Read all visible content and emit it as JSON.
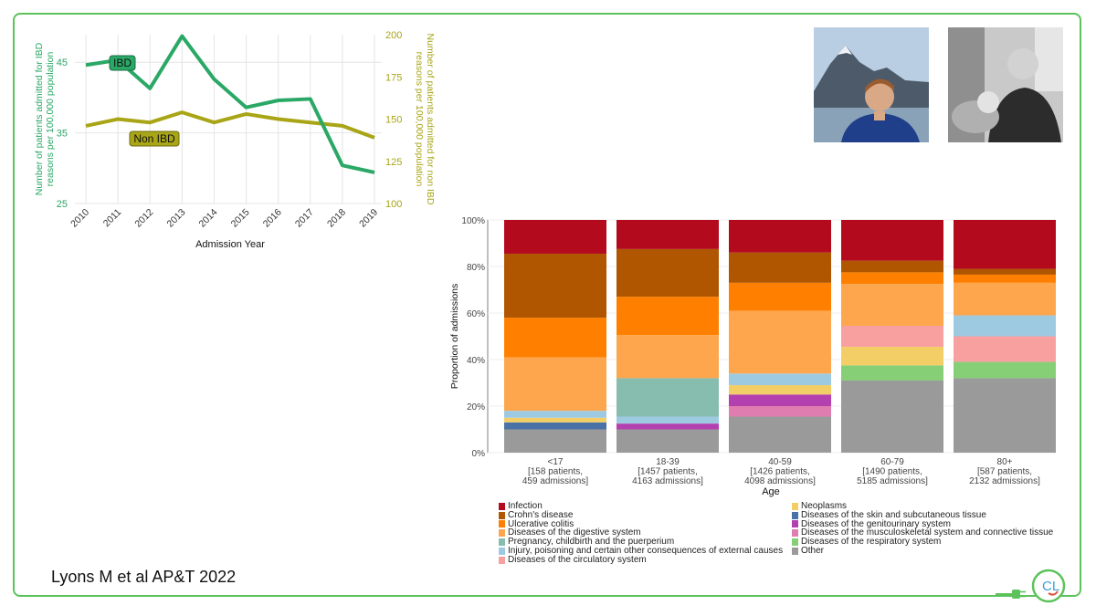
{
  "citation": "Lyons M et al AP&T 2022",
  "logo_text": "CL",
  "colors": {
    "frame": "#5cc35c",
    "ibd": "#2aa866",
    "nonibd": "#a8a516",
    "infection": "#b30a1e",
    "crohns": "#b05500",
    "uc": "#ff8000",
    "digestive": "#fda64d",
    "pregnancy": "#86bdaf",
    "injury": "#9ecae1",
    "circulatory": "#f8a0a0",
    "neoplasms": "#f3cd66",
    "skin": "#4a72a7",
    "genitourinary": "#b440b0",
    "musculoskeletal": "#e07db0",
    "respiratory": "#87cf76",
    "other": "#9a9a9a"
  },
  "chart_data": [
    {
      "type": "line",
      "x": [
        2010,
        2011,
        2012,
        2013,
        2014,
        2015,
        2016,
        2017,
        2018,
        2019
      ],
      "xlabel": "Admission Year",
      "ylabel_left": "Number of patients admitted for IBD reasons per 100,000 population",
      "ylabel_right": "Number of patients admitted for non IBD reasons per 100,000 population",
      "left_ticks": [
        "25",
        "35",
        "45"
      ],
      "right_ticks": [
        "100",
        "125",
        "150",
        "175",
        "200"
      ],
      "ylim_left": [
        25,
        48.9
      ],
      "ylim_right": [
        100,
        200
      ],
      "series": [
        {
          "name": "IBD",
          "axis": "left",
          "values": [
            44.6,
            45.3,
            41.3,
            48.7,
            42.6,
            38.6,
            39.6,
            39.8,
            30.4,
            29.4
          ]
        },
        {
          "name": "Non IBD",
          "axis": "right",
          "values": [
            146,
            150,
            148,
            154,
            148,
            153,
            150,
            148,
            146,
            139
          ]
        }
      ]
    },
    {
      "type": "bar",
      "stacked": true,
      "ylabel": "Proportion of admissions",
      "xlabel": "Age",
      "yticks": [
        "0%",
        "20%",
        "40%",
        "60%",
        "80%",
        "100%"
      ],
      "categories": [
        {
          "name": "<17",
          "patients": "[158 patients,",
          "admissions": "459 admissions]"
        },
        {
          "name": "18-39",
          "patients": "[1457 patients,",
          "admissions": "4163 admissions]"
        },
        {
          "name": "40-59",
          "patients": "[1426 patients,",
          "admissions": "4098 admissions]"
        },
        {
          "name": "60-79",
          "patients": "[1490 patients,",
          "admissions": "5185 admissions]"
        },
        {
          "name": "80+",
          "patients": "[587 patients,",
          "admissions": "2132 admissions]"
        }
      ],
      "series": [
        {
          "name": "Other",
          "color_key": "other",
          "values": [
            10,
            10,
            15.5,
            31,
            32
          ]
        },
        {
          "name": "Diseases of the respiratory system",
          "color_key": "respiratory",
          "values": [
            0,
            0,
            0,
            6.5,
            7
          ]
        },
        {
          "name": "Diseases of the musculoskeletal system and connective tissue",
          "color_key": "musculoskeletal",
          "values": [
            0,
            0,
            4.5,
            0,
            0
          ]
        },
        {
          "name": "Diseases of the genitourinary system",
          "color_key": "genitourinary",
          "values": [
            0,
            2.5,
            5,
            0,
            0
          ]
        },
        {
          "name": "Diseases of the skin and subcutaneous tissue",
          "color_key": "skin",
          "values": [
            3,
            0,
            0,
            0,
            0
          ]
        },
        {
          "name": "Neoplasms",
          "color_key": "neoplasms",
          "values": [
            2,
            0,
            4,
            8,
            0
          ]
        },
        {
          "name": "Diseases of the circulatory system",
          "color_key": "circulatory",
          "values": [
            0,
            0,
            0,
            9,
            11
          ]
        },
        {
          "name": "Injury, poisoning and certain other consequences of external causes",
          "color_key": "injury",
          "values": [
            3,
            3,
            5,
            0,
            9
          ]
        },
        {
          "name": "Pregnancy, childbirth and the puerperium",
          "color_key": "pregnancy",
          "values": [
            0,
            16.5,
            0,
            0,
            0
          ]
        },
        {
          "name": "Diseases of the digestive system",
          "color_key": "digestive",
          "values": [
            23,
            18.5,
            27,
            18,
            14
          ]
        },
        {
          "name": "Ulcerative colitis",
          "color_key": "uc",
          "values": [
            17,
            16.5,
            12,
            5,
            3.5
          ]
        },
        {
          "name": "Crohn's disease",
          "color_key": "crohns",
          "values": [
            27.5,
            20.5,
            13,
            5,
            2.5
          ]
        },
        {
          "name": "Infection",
          "color_key": "infection",
          "values": [
            14.5,
            12.5,
            14,
            17.5,
            21
          ]
        }
      ],
      "legend_col1": [
        {
          "label": "Infection",
          "color_key": "infection"
        },
        {
          "label": "Crohn's disease",
          "color_key": "crohns"
        },
        {
          "label": "Ulcerative colitis",
          "color_key": "uc"
        },
        {
          "label": "Diseases of the digestive system",
          "color_key": "digestive"
        },
        {
          "label": "Pregnancy, childbirth and the puerperium",
          "color_key": "pregnancy"
        },
        {
          "label": "Injury, poisoning and certain other consequences of external causes",
          "color_key": "injury"
        },
        {
          "label": "Diseases of the circulatory system",
          "color_key": "circulatory"
        }
      ],
      "legend_col2": [
        {
          "label": "Neoplasms",
          "color_key": "neoplasms"
        },
        {
          "label": "Diseases of the skin and subcutaneous tissue",
          "color_key": "skin"
        },
        {
          "label": "Diseases of the genitourinary system",
          "color_key": "genitourinary"
        },
        {
          "label": "Diseases of the musculoskeletal system and connective tissue",
          "color_key": "musculoskeletal"
        },
        {
          "label": "Diseases of the respiratory system",
          "color_key": "respiratory"
        },
        {
          "label": "Other",
          "color_key": "other"
        }
      ]
    }
  ]
}
